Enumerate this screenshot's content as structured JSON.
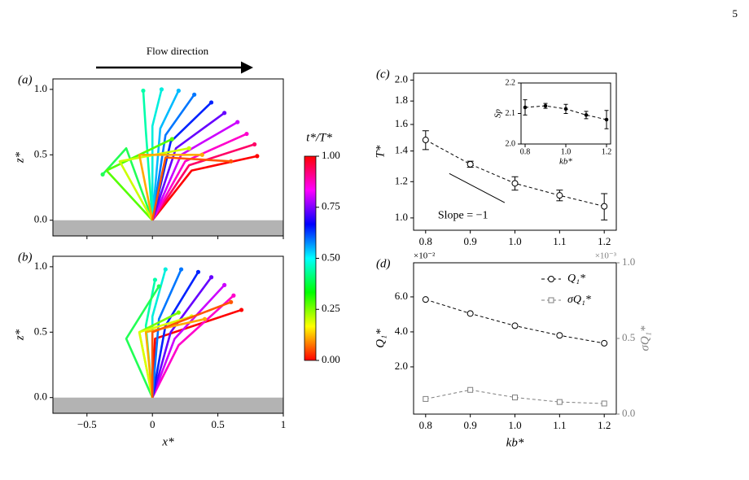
{
  "page_number": "5",
  "chart_data": [
    {
      "type": "filaments",
      "panel_label": "(a)",
      "annotation": "Flow direction",
      "ylabel": "z*",
      "xlim": [
        -0.76,
        1.0
      ],
      "ylim": [
        -0.12,
        1.08
      ],
      "xticks": [
        {
          "value": -0.5,
          "label": "−0.5"
        },
        0,
        0.5,
        1
      ],
      "show_xtick_labels": false,
      "yticks": [
        {
          "value": 0,
          "label": "0.0"
        },
        0.5,
        {
          "value": 1,
          "label": "1.0"
        }
      ],
      "ground_color": "#b3b3b3",
      "series": [
        {
          "color": "#ff0000",
          "x": [
            0,
            0.3,
            0.8
          ],
          "values": [
            0,
            0.38,
            0.49
          ]
        },
        {
          "color": "#ff0066",
          "x": [
            0,
            0.28,
            0.78
          ],
          "values": [
            0,
            0.42,
            0.58
          ]
        },
        {
          "color": "#ff00cc",
          "x": [
            0,
            0.25,
            0.72
          ],
          "values": [
            0,
            0.45,
            0.66
          ]
        },
        {
          "color": "#cc00ff",
          "x": [
            0,
            0.22,
            0.65
          ],
          "values": [
            0,
            0.5,
            0.75
          ]
        },
        {
          "color": "#6600ff",
          "x": [
            0,
            0.18,
            0.55
          ],
          "values": [
            0,
            0.55,
            0.82
          ]
        },
        {
          "color": "#0022ff",
          "x": [
            0,
            0.14,
            0.45
          ],
          "values": [
            0,
            0.6,
            0.9
          ]
        },
        {
          "color": "#0077ff",
          "x": [
            0,
            0.1,
            0.32
          ],
          "values": [
            0,
            0.65,
            0.96
          ]
        },
        {
          "color": "#00bbff",
          "x": [
            0,
            0.06,
            0.2
          ],
          "values": [
            0,
            0.7,
            0.99
          ]
        },
        {
          "color": "#00eedd",
          "x": [
            0,
            0.0,
            0.07
          ],
          "values": [
            0,
            0.72,
            1.0
          ]
        },
        {
          "color": "#00ffaa",
          "x": [
            0,
            -0.05,
            -0.07
          ],
          "values": [
            0,
            0.68,
            0.99
          ]
        },
        {
          "color": "#22ff55",
          "x": [
            0,
            -0.2,
            -0.38
          ],
          "values": [
            0,
            0.55,
            0.35
          ]
        },
        {
          "color": "#55ff00",
          "x": [
            0,
            -0.35,
            0.15
          ],
          "values": [
            0,
            0.38,
            0.62
          ]
        },
        {
          "color": "#ccff00",
          "x": [
            0,
            -0.25,
            0.28
          ],
          "values": [
            0,
            0.45,
            0.55
          ]
        },
        {
          "color": "#ffaa00",
          "x": [
            0,
            -0.1,
            0.38
          ],
          "values": [
            0,
            0.5,
            0.5
          ]
        },
        {
          "color": "#ff5500",
          "x": [
            0,
            0.1,
            0.6
          ],
          "values": [
            0,
            0.48,
            0.45
          ]
        }
      ]
    },
    {
      "type": "filaments",
      "panel_label": "(b)",
      "xlabel": "x*",
      "ylabel": "z*",
      "xlim": [
        -0.76,
        1.0
      ],
      "ylim": [
        -0.12,
        1.08
      ],
      "xticks": [
        {
          "value": -0.5,
          "label": "−0.5"
        },
        0,
        0.5,
        1
      ],
      "show_xtick_labels": true,
      "yticks": [
        {
          "value": 0,
          "label": "0.0"
        },
        0.5,
        {
          "value": 1,
          "label": "1.0"
        }
      ],
      "ground_color": "#b3b3b3",
      "series": [
        {
          "color": "#ff0000",
          "x": [
            0,
            0.02,
            0.68
          ],
          "values": [
            0,
            0.45,
            0.67
          ]
        },
        {
          "color": "#ff00cc",
          "x": [
            0,
            0.2,
            0.62
          ],
          "values": [
            0,
            0.4,
            0.78
          ]
        },
        {
          "color": "#cc00ff",
          "x": [
            0,
            0.17,
            0.55
          ],
          "values": [
            0,
            0.45,
            0.86
          ]
        },
        {
          "color": "#6600ff",
          "x": [
            0,
            0.14,
            0.45
          ],
          "values": [
            0,
            0.5,
            0.92
          ]
        },
        {
          "color": "#0022ff",
          "x": [
            0,
            0.1,
            0.35
          ],
          "values": [
            0,
            0.55,
            0.96
          ]
        },
        {
          "color": "#0077ff",
          "x": [
            0,
            0.05,
            0.22
          ],
          "values": [
            0,
            0.6,
            0.98
          ]
        },
        {
          "color": "#00eedd",
          "x": [
            0,
            0.0,
            0.1
          ],
          "values": [
            0,
            0.62,
            0.98
          ]
        },
        {
          "color": "#00ffaa",
          "x": [
            0,
            -0.05,
            0.02
          ],
          "values": [
            0,
            0.55,
            0.9
          ]
        },
        {
          "color": "#22ff55",
          "x": [
            0,
            -0.2,
            0.05
          ],
          "values": [
            0,
            0.45,
            0.85
          ]
        },
        {
          "color": "#77ff00",
          "x": [
            0,
            -0.1,
            0.2
          ],
          "values": [
            0,
            0.5,
            0.65
          ]
        },
        {
          "color": "#ddff00",
          "x": [
            0,
            -0.1,
            0.3
          ],
          "values": [
            0,
            0.5,
            0.62
          ]
        },
        {
          "color": "#ffaa00",
          "x": [
            0,
            -0.05,
            0.4
          ],
          "values": [
            0,
            0.5,
            0.6
          ]
        },
        {
          "color": "#ff5500",
          "x": [
            0,
            0.0,
            0.6
          ],
          "values": [
            0,
            0.5,
            0.73
          ]
        }
      ]
    },
    {
      "type": "colorbar",
      "label": "t*/T*",
      "ylim": [
        0,
        1
      ],
      "yticks": [
        {
          "value": 0,
          "label": "0.00"
        },
        0.25,
        {
          "value": 0.5,
          "label": "0.50"
        },
        0.75,
        {
          "value": 1,
          "label": "1.00"
        }
      ],
      "colors": [
        "#ff0000",
        "#ffff00",
        "#00ff00",
        "#00ffff",
        "#0000ff",
        "#ff00ff",
        "#ff0000"
      ]
    },
    {
      "type": "errorbar",
      "panel_label": "(c)",
      "ylabel": "T*",
      "yscale": "log",
      "color": "#000000",
      "x": [
        0.8,
        0.9,
        1.0,
        1.1,
        1.2
      ],
      "values": [
        1.48,
        1.31,
        1.19,
        1.12,
        1.06
      ],
      "errors": [
        0.07,
        0.02,
        0.04,
        0.03,
        0.07
      ],
      "xlim": [
        0.773,
        1.227
      ],
      "ylim": [
        0.94,
        2.07
      ],
      "xticks": [
        0.8,
        0.9,
        {
          "value": 1,
          "label": "1.0"
        },
        1.1,
        1.2
      ],
      "yticks": [
        {
          "value": 1,
          "label": "1.0"
        },
        1.2,
        1.4,
        1.6,
        1.8,
        {
          "value": 2,
          "label": "2.0"
        }
      ],
      "annotation": "Slope = −1",
      "slope_line": {
        "x": [
          0.853,
          0.977
        ],
        "y": [
          1.25,
          1.08
        ]
      }
    },
    {
      "type": "errorbar",
      "xlabel": "kb*",
      "ylabel": "Sp",
      "color": "#000000",
      "x": [
        0.8,
        0.9,
        1.0,
        1.1,
        1.2
      ],
      "values": [
        2.12,
        2.125,
        2.115,
        2.095,
        2.08
      ],
      "errors": [
        0.025,
        0.008,
        0.015,
        0.012,
        0.03
      ],
      "xlim": [
        0.78,
        1.22
      ],
      "ylim": [
        2.0,
        2.2
      ],
      "xticks": [
        0.8,
        {
          "value": 1,
          "label": "1.0"
        },
        1.2
      ],
      "yticks": [
        {
          "value": 2,
          "label": "2.0"
        },
        2.1,
        2.2
      ]
    },
    {
      "type": "dual_line",
      "panel_label": "(d)",
      "xlabel": "kb*",
      "ylabel": "Q₁*",
      "y2label": "σQ₁*",
      "y_multiplier": "×10⁻²",
      "y2_multiplier": "×10⁻³",
      "x": [
        0.8,
        0.9,
        1.0,
        1.1,
        1.2
      ],
      "xlim": [
        0.773,
        1.227
      ],
      "ylim": [
        -0.7,
        7.95
      ],
      "y2lim": [
        0,
        1
      ],
      "xticks": [
        0.8,
        0.9,
        {
          "value": 1,
          "label": "1.0"
        },
        1.1,
        1.2
      ],
      "yticks": [
        {
          "value": 2,
          "label": "2.0"
        },
        {
          "value": 4,
          "label": "4.0"
        },
        {
          "value": 6,
          "label": "6.0"
        }
      ],
      "y2ticks": [
        {
          "value": 0,
          "label": "0.0"
        },
        0.5,
        {
          "value": 1,
          "label": "1.0"
        }
      ],
      "legend": "upper right",
      "series": [
        {
          "name": "Q₁*",
          "color": "#000000",
          "marker": "circle",
          "values": [
            5.85,
            5.05,
            4.35,
            3.8,
            3.35
          ]
        },
        {
          "name": "σQ₁*",
          "color": "#7f7f7f",
          "marker": "square",
          "axis": "y2",
          "values": [
            0.1,
            0.16,
            0.11,
            0.08,
            0.07
          ]
        }
      ]
    }
  ]
}
